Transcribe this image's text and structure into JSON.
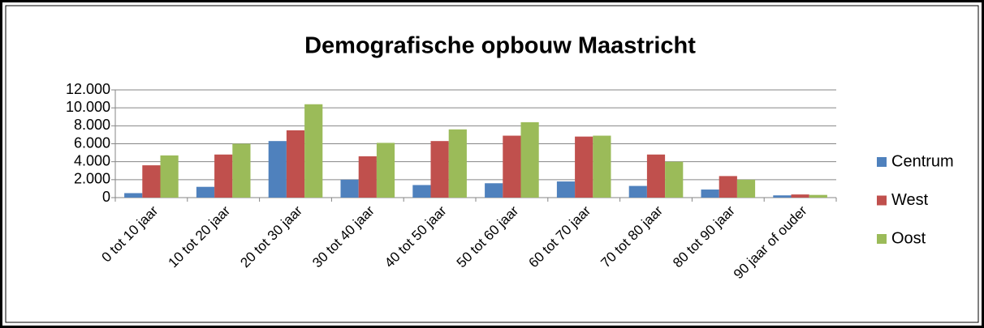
{
  "chart_data": {
    "type": "bar",
    "title": "Demografische opbouw Maastricht",
    "categories": [
      "0 tot 10 jaar",
      "10 tot 20 jaar",
      "20 tot 30 jaar",
      "30 tot 40 jaar",
      "40 tot 50 jaar",
      "50 tot 60 jaar",
      "60 tot 70 jaar",
      "70 tot 80 jaar",
      "80 tot 90 jaar",
      "90 jaar of ouder"
    ],
    "series": [
      {
        "name": "Centrum",
        "color": "#4f81bd",
        "values": [
          500,
          1200,
          6300,
          2000,
          1400,
          1600,
          1800,
          1300,
          900,
          250
        ]
      },
      {
        "name": "West",
        "color": "#c0504d",
        "values": [
          3600,
          4800,
          7500,
          4600,
          6300,
          6900,
          6800,
          4800,
          2400,
          350
        ]
      },
      {
        "name": "Oost",
        "color": "#9bbb59",
        "values": [
          4700,
          6000,
          10400,
          6100,
          7600,
          8400,
          6900,
          4000,
          2000,
          300
        ]
      }
    ],
    "ylim": [
      0,
      12000
    ],
    "yticks": [
      0,
      {
        "value": 2000,
        "label": "2.000"
      },
      {
        "value": 4000,
        "label": "4.000"
      },
      {
        "value": 6000,
        "label": "6.000"
      },
      {
        "value": 8000,
        "label": "8.000"
      },
      {
        "value": 10000,
        "label": "10.000"
      },
      {
        "value": 12000,
        "label": "12.000"
      }
    ],
    "grid": true,
    "legend": "right"
  }
}
